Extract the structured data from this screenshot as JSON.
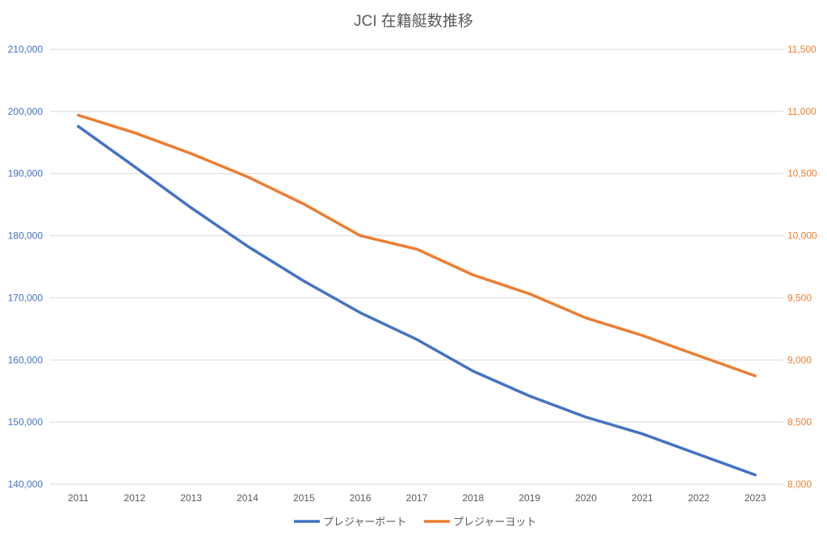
{
  "chart_data": {
    "type": "line",
    "title": "JCI 在籍艇数推移",
    "categories": [
      "2011",
      "2012",
      "2013",
      "2014",
      "2015",
      "2016",
      "2017",
      "2018",
      "2019",
      "2020",
      "2021",
      "2022",
      "2023"
    ],
    "series": [
      {
        "name": "プレジャーボート",
        "axis": "left",
        "color": "#4472C4",
        "values": [
          197600,
          191100,
          184500,
          178300,
          172700,
          167600,
          163300,
          158200,
          154200,
          150800,
          148100,
          144800,
          141500
        ]
      },
      {
        "name": "プレジャーヨット",
        "axis": "right",
        "color": "#ED7D31",
        "values": [
          10970,
          10828,
          10661,
          10474,
          10254,
          10000,
          9892,
          9684,
          9532,
          9338,
          9197,
          9034,
          8872
        ]
      }
    ],
    "y_left": {
      "min": 140000,
      "max": 210000,
      "step": 10000,
      "tick_labels": [
        "140,000",
        "150,000",
        "160,000",
        "170,000",
        "180,000",
        "190,000",
        "200,000",
        "210,000"
      ]
    },
    "y_right": {
      "min": 8000,
      "max": 11500,
      "step": 500,
      "tick_labels": [
        "8,000",
        "8,500",
        "9,000",
        "9,500",
        "10,000",
        "10,500",
        "11,000",
        "11,500"
      ]
    },
    "grid": true,
    "legend": "bottom"
  }
}
